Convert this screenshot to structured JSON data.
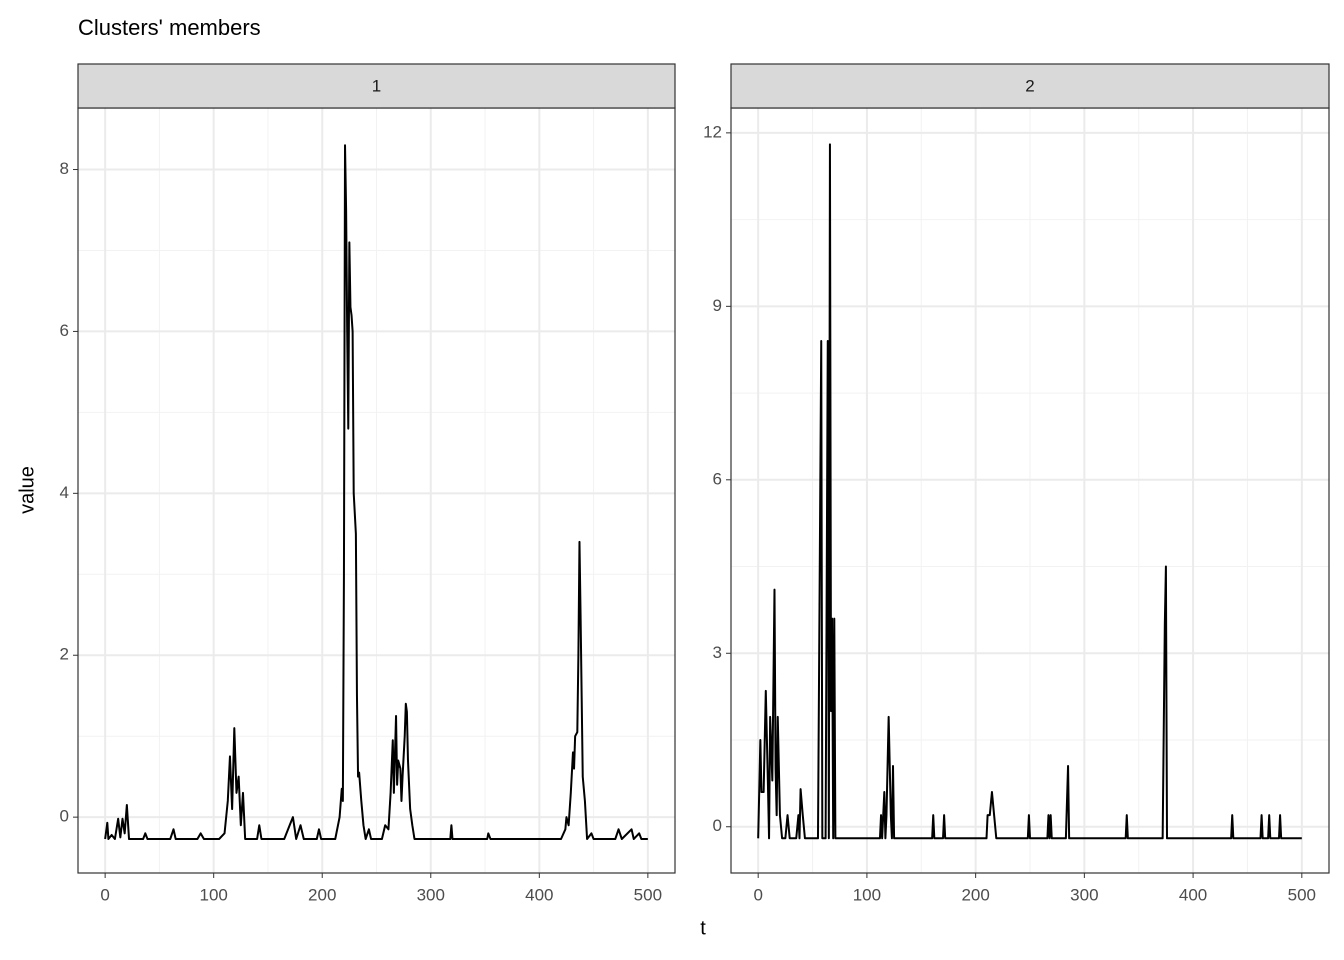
{
  "title": "Clusters' members",
  "x_label": "t",
  "y_label": "value",
  "chart_data": [
    {
      "type": "line",
      "facet_label": "1",
      "color": "#000000",
      "grid": true,
      "xlim": [
        -25,
        525
      ],
      "xticks": [
        0,
        100,
        200,
        300,
        400,
        500
      ],
      "minor_xticks": [
        50,
        150,
        250,
        350,
        450
      ],
      "ylim": [
        -0.69,
        8.76
      ],
      "yticks": [
        0,
        2,
        4,
        6,
        8
      ],
      "minor_yticks": [
        1,
        3,
        5,
        7
      ],
      "x": [
        0,
        2,
        3,
        6,
        9,
        12,
        14,
        16,
        18,
        20,
        22,
        35,
        37,
        39,
        60,
        63,
        65,
        85,
        88,
        91,
        105,
        110,
        113,
        115,
        117,
        119,
        121,
        123,
        125,
        127,
        129,
        140,
        142,
        144,
        165,
        170,
        173,
        176,
        180,
        183,
        195,
        197,
        199,
        212,
        216,
        218,
        219,
        220,
        221,
        222,
        223,
        224,
        225,
        226,
        227,
        228,
        229,
        231,
        232,
        233,
        234,
        236,
        238,
        240,
        243,
        245,
        255,
        258,
        261,
        263,
        265,
        266,
        268,
        269,
        270,
        272,
        273,
        274,
        276,
        277,
        278,
        279,
        281,
        283,
        285,
        318,
        319,
        320,
        352,
        353,
        355,
        420,
        424,
        425,
        427,
        429,
        431,
        432,
        433,
        435,
        436,
        437,
        438,
        439,
        440,
        442,
        444,
        448,
        450,
        470,
        473,
        476,
        485,
        487,
        492,
        494,
        500
      ],
      "values": [
        -0.27,
        -0.07,
        -0.27,
        -0.22,
        -0.27,
        -0.02,
        -0.25,
        -0.02,
        -0.2,
        0.15,
        -0.27,
        -0.27,
        -0.2,
        -0.27,
        -0.27,
        -0.15,
        -0.27,
        -0.27,
        -0.2,
        -0.27,
        -0.27,
        -0.2,
        0.2,
        0.75,
        0.1,
        1.1,
        0.3,
        0.5,
        -0.1,
        0.3,
        -0.27,
        -0.27,
        -0.1,
        -0.27,
        -0.27,
        -0.1,
        0.0,
        -0.27,
        -0.1,
        -0.27,
        -0.27,
        -0.15,
        -0.27,
        -0.27,
        0.0,
        0.35,
        0.2,
        3.0,
        8.3,
        7.5,
        6.0,
        4.8,
        7.1,
        6.3,
        6.2,
        6.0,
        4.0,
        3.5,
        1.5,
        0.5,
        0.55,
        0.2,
        -0.1,
        -0.27,
        -0.15,
        -0.27,
        -0.27,
        -0.1,
        -0.15,
        0.3,
        0.95,
        0.3,
        1.25,
        0.4,
        0.7,
        0.6,
        0.2,
        0.5,
        1.0,
        1.4,
        1.3,
        0.7,
        0.1,
        -0.1,
        -0.27,
        -0.27,
        -0.1,
        -0.27,
        -0.27,
        -0.2,
        -0.27,
        -0.27,
        -0.15,
        0.0,
        -0.1,
        0.3,
        0.8,
        0.6,
        1.0,
        1.05,
        2.0,
        3.4,
        2.5,
        1.5,
        0.5,
        0.2,
        -0.27,
        -0.2,
        -0.27,
        -0.27,
        -0.15,
        -0.27,
        -0.15,
        -0.27,
        -0.2,
        -0.27,
        -0.27
      ]
    },
    {
      "type": "line",
      "facet_label": "2",
      "color": "#000000",
      "grid": true,
      "xlim": [
        -25,
        525
      ],
      "xticks": [
        0,
        100,
        200,
        300,
        400,
        500
      ],
      "minor_xticks": [
        50,
        150,
        250,
        350,
        450
      ],
      "ylim": [
        -0.8,
        12.43
      ],
      "yticks": [
        0,
        3,
        6,
        9,
        12
      ],
      "minor_yticks": [
        1.5,
        4.5,
        7.5,
        10.5
      ],
      "x": [
        0,
        2,
        3,
        5,
        7,
        9,
        10,
        11,
        13,
        15,
        16,
        17,
        18,
        20,
        22,
        25,
        27,
        29,
        35,
        37,
        38,
        39,
        41,
        43,
        55,
        58,
        59,
        62,
        64,
        65,
        66,
        67,
        68,
        69,
        70,
        71,
        112,
        113,
        114,
        116,
        117,
        118,
        120,
        122,
        123,
        124,
        125,
        160,
        161,
        162,
        170,
        171,
        172,
        210,
        211,
        213,
        215,
        217,
        219,
        248,
        249,
        250,
        266,
        267,
        268,
        269,
        270,
        283,
        285,
        286,
        338,
        339,
        340,
        372,
        374,
        375,
        376,
        435,
        436,
        437,
        462,
        463,
        464,
        469,
        470,
        471,
        479,
        480,
        481,
        500
      ],
      "values": [
        -0.2,
        1.5,
        0.6,
        0.6,
        2.35,
        0.7,
        -0.2,
        1.9,
        0.8,
        4.1,
        1.0,
        0.2,
        1.9,
        0.2,
        -0.2,
        -0.2,
        0.2,
        -0.2,
        -0.2,
        0.2,
        -0.2,
        0.65,
        0.2,
        -0.2,
        -0.2,
        8.4,
        -0.2,
        -0.2,
        8.4,
        -0.2,
        11.8,
        2.0,
        3.6,
        -0.2,
        3.6,
        -0.2,
        -0.2,
        0.2,
        -0.2,
        0.6,
        -0.2,
        0.2,
        1.9,
        0.2,
        -0.2,
        1.05,
        -0.2,
        -0.2,
        0.2,
        -0.2,
        -0.2,
        0.2,
        -0.2,
        -0.2,
        0.2,
        0.2,
        0.6,
        0.2,
        -0.2,
        -0.2,
        0.2,
        -0.2,
        -0.2,
        0.2,
        -0.2,
        0.2,
        -0.2,
        -0.2,
        1.05,
        -0.2,
        -0.2,
        0.2,
        -0.2,
        -0.2,
        3.5,
        4.5,
        -0.2,
        -0.2,
        0.2,
        -0.2,
        -0.2,
        0.2,
        -0.2,
        -0.2,
        0.2,
        -0.2,
        -0.2,
        0.2,
        -0.2,
        -0.2
      ]
    }
  ]
}
